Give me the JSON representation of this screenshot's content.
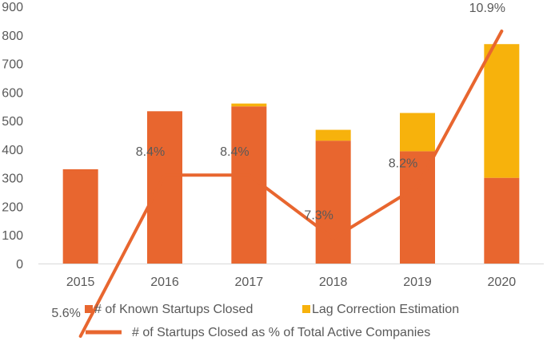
{
  "chart_data": {
    "type": "bar",
    "stacked": true,
    "categories": [
      "2015",
      "2016",
      "2017",
      "2018",
      "2019",
      "2020"
    ],
    "series": [
      {
        "name": "# of Known Startups Closed",
        "kind": "bar",
        "color": "#E8662F",
        "values": [
          330,
          533,
          550,
          430,
          393,
          300
        ]
      },
      {
        "name": "Lag Correction Estimation",
        "kind": "bar",
        "color": "#F7B20C",
        "values": [
          0,
          0,
          10,
          38,
          134,
          468
        ]
      },
      {
        "name": "# of Startups Closed as % of Total Active Companies",
        "kind": "line",
        "color": "#E8662F",
        "values": [
          5.6,
          8.4,
          8.4,
          7.3,
          8.2,
          10.9
        ],
        "labels": [
          "5.6%",
          "8.4%",
          "8.4%",
          "7.3%",
          "8.2%",
          "10.9%"
        ]
      }
    ],
    "y_ticks": [
      "0",
      "100",
      "200",
      "300",
      "400",
      "500",
      "600",
      "700",
      "800",
      "900"
    ],
    "ylim": [
      0,
      900
    ],
    "grid": false,
    "legend_position": "bottom"
  }
}
